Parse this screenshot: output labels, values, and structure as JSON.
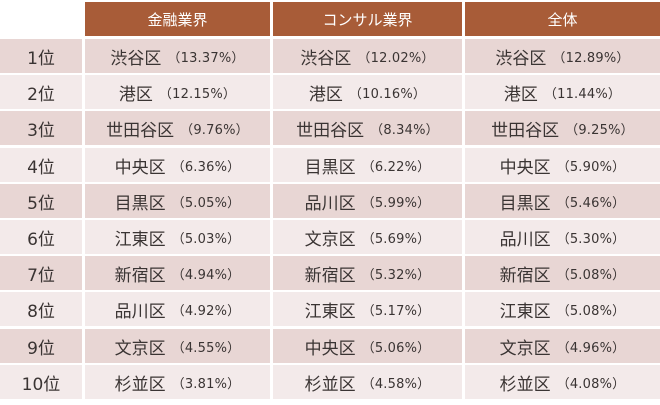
{
  "headers": [
    "",
    "金融業界",
    "コンサル業界",
    "全体"
  ],
  "rows": [
    {
      "rank": "1位",
      "cells": [
        {
          "ward": "渋谷区",
          "pct": "（13.37%）"
        },
        {
          "ward": "渋谷区",
          "pct": "（12.02%）"
        },
        {
          "ward": "渋谷区",
          "pct": "（12.89%）"
        }
      ]
    },
    {
      "rank": "2位",
      "cells": [
        {
          "ward": "港区",
          "pct": "（12.15%）"
        },
        {
          "ward": "港区",
          "pct": "（10.16%）"
        },
        {
          "ward": "港区",
          "pct": "（11.44%）"
        }
      ]
    },
    {
      "rank": "3位",
      "cells": [
        {
          "ward": "世田谷区",
          "pct": "（9.76%）"
        },
        {
          "ward": "世田谷区",
          "pct": "（8.34%）"
        },
        {
          "ward": "世田谷区",
          "pct": "（9.25%）"
        }
      ]
    },
    {
      "rank": "4位",
      "cells": [
        {
          "ward": "中央区",
          "pct": "（6.36%）"
        },
        {
          "ward": "目黒区",
          "pct": "（6.22%）"
        },
        {
          "ward": "中央区",
          "pct": "（5.90%）"
        }
      ]
    },
    {
      "rank": "5位",
      "cells": [
        {
          "ward": "目黒区",
          "pct": "（5.05%）"
        },
        {
          "ward": "品川区",
          "pct": "（5.99%）"
        },
        {
          "ward": "目黒区",
          "pct": "（5.46%）"
        }
      ]
    },
    {
      "rank": "6位",
      "cells": [
        {
          "ward": "江東区",
          "pct": "（5.03%）"
        },
        {
          "ward": "文京区",
          "pct": "（5.69%）"
        },
        {
          "ward": "品川区",
          "pct": "（5.30%）"
        }
      ]
    },
    {
      "rank": "7位",
      "cells": [
        {
          "ward": "新宿区",
          "pct": "（4.94%）"
        },
        {
          "ward": "新宿区",
          "pct": "（5.32%）"
        },
        {
          "ward": "新宿区",
          "pct": "（5.08%）"
        }
      ]
    },
    {
      "rank": "8位",
      "cells": [
        {
          "ward": "品川区",
          "pct": "（4.92%）"
        },
        {
          "ward": "江東区",
          "pct": "（5.17%）"
        },
        {
          "ward": "江東区",
          "pct": "（5.08%）"
        }
      ]
    },
    {
      "rank": "9位",
      "cells": [
        {
          "ward": "文京区",
          "pct": "（4.55%）"
        },
        {
          "ward": "中央区",
          "pct": "（5.06%）"
        },
        {
          "ward": "文京区",
          "pct": "（4.96%）"
        }
      ]
    },
    {
      "rank": "10位",
      "cells": [
        {
          "ward": "杉並区",
          "pct": "（3.81%）"
        },
        {
          "ward": "杉並区",
          "pct": "（4.58%）"
        },
        {
          "ward": "杉並区",
          "pct": "（4.08%）"
        }
      ]
    }
  ],
  "colors": {
    "header_bg": "#a85c38",
    "header_text": "#ffffff",
    "row_odd_bg": "#e8d6d4",
    "row_even_bg": "#f3eaea",
    "body_text": "#3a3433"
  }
}
